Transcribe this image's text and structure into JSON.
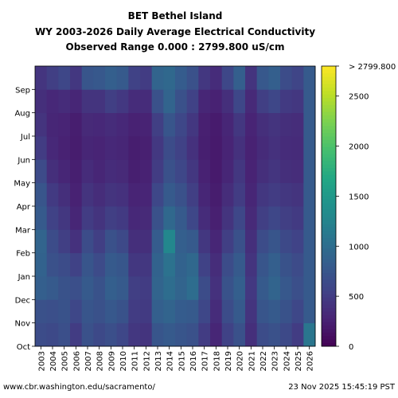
{
  "chart_data": {
    "type": "heatmap",
    "title": [
      "BET Bethel Island",
      "WY 2003-2026 Daily Average Electrical Conductivity",
      "Observed Range 0.000 : 2799.800 uS/cm"
    ],
    "xlabel": "",
    "ylabel": "",
    "x_categories": [
      "2003",
      "2004",
      "2005",
      "2006",
      "2007",
      "2008",
      "2009",
      "2010",
      "2011",
      "2012",
      "2013",
      "2014",
      "2015",
      "2016",
      "2017",
      "2018",
      "2019",
      "2020",
      "2021",
      "2022",
      "2023",
      "2024",
      "2025",
      "2026"
    ],
    "y_categories": [
      "Oct",
      "Nov",
      "Dec",
      "Jan",
      "Feb",
      "Mar",
      "Apr",
      "May",
      "Jun",
      "Jul",
      "Aug",
      "Sep"
    ],
    "colorscale": "viridis",
    "colorbar": {
      "min": 0,
      "max": 2799.8,
      "ticks": [
        0,
        500,
        1000,
        1500,
        2000,
        2500
      ],
      "tick_labels": [
        "0",
        "500",
        "1000",
        "1500",
        "2000",
        "2500"
      ],
      "max_label": "> 2799.800"
    },
    "values": [
      [
        650,
        700,
        850,
        880,
        900,
        800,
        750,
        640,
        500,
        420,
        380,
        430
      ],
      [
        620,
        680,
        800,
        700,
        650,
        550,
        480,
        380,
        320,
        300,
        320,
        520
      ],
      [
        680,
        720,
        720,
        650,
        520,
        450,
        380,
        300,
        260,
        280,
        350,
        600
      ],
      [
        500,
        600,
        680,
        550,
        400,
        300,
        260,
        240,
        220,
        230,
        300,
        450
      ],
      [
        700,
        750,
        800,
        750,
        650,
        500,
        420,
        350,
        300,
        330,
        420,
        750
      ],
      [
        620,
        700,
        720,
        640,
        520,
        420,
        360,
        300,
        280,
        320,
        420,
        780
      ],
      [
        680,
        780,
        850,
        800,
        700,
        520,
        420,
        350,
        320,
        350,
        520,
        850
      ],
      [
        600,
        720,
        800,
        760,
        620,
        480,
        400,
        330,
        300,
        320,
        460,
        800
      ],
      [
        450,
        500,
        520,
        450,
        380,
        320,
        280,
        240,
        230,
        260,
        350,
        550
      ],
      [
        420,
        480,
        500,
        450,
        380,
        330,
        290,
        260,
        250,
        270,
        350,
        500
      ],
      [
        750,
        850,
        900,
        880,
        820,
        700,
        600,
        500,
        460,
        520,
        700,
        900
      ],
      [
        800,
        900,
        1000,
        1050,
        1300,
        950,
        800,
        700,
        650,
        750,
        900,
        950
      ],
      [
        750,
        820,
        900,
        880,
        850,
        800,
        700,
        600,
        550,
        600,
        700,
        820
      ],
      [
        700,
        800,
        1000,
        950,
        800,
        600,
        520,
        450,
        400,
        450,
        550,
        700
      ],
      [
        500,
        600,
        650,
        550,
        450,
        350,
        300,
        260,
        240,
        250,
        300,
        450
      ],
      [
        300,
        350,
        400,
        360,
        300,
        250,
        220,
        200,
        200,
        210,
        260,
        350
      ],
      [
        550,
        650,
        720,
        650,
        520,
        420,
        360,
        300,
        280,
        300,
        380,
        600
      ],
      [
        700,
        800,
        850,
        800,
        700,
        600,
        500,
        450,
        400,
        450,
        600,
        850
      ],
      [
        380,
        420,
        460,
        420,
        380,
        330,
        300,
        270,
        260,
        280,
        330,
        420
      ],
      [
        650,
        750,
        800,
        750,
        650,
        520,
        450,
        380,
        340,
        380,
        520,
        780
      ],
      [
        700,
        800,
        900,
        850,
        750,
        600,
        500,
        430,
        400,
        420,
        600,
        850
      ],
      [
        620,
        720,
        780,
        720,
        620,
        520,
        450,
        380,
        350,
        380,
        480,
        650
      ],
      [
        500,
        600,
        680,
        640,
        560,
        480,
        420,
        360,
        340,
        360,
        450,
        580
      ],
      [
        1100,
        800,
        800,
        800,
        800,
        800,
        800,
        800,
        800,
        800,
        800,
        800
      ]
    ],
    "missing_cells_note": "",
    "footer_left": "www.cbr.washington.edu/sacramento/",
    "footer_right": "23 Nov 2025 15:45:19 PST"
  }
}
